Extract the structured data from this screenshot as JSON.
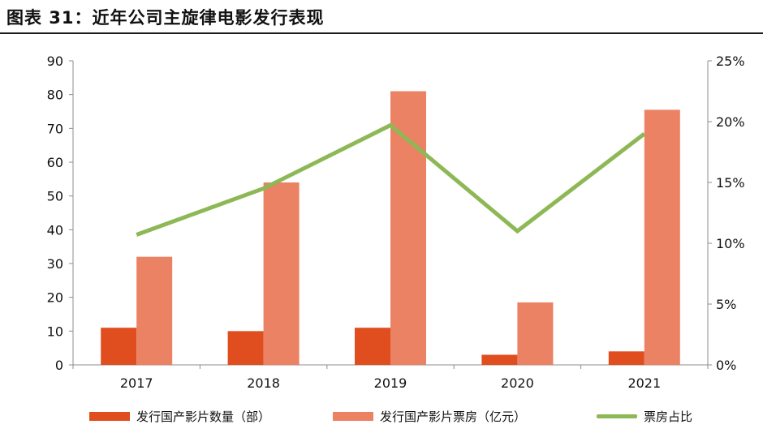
{
  "title": "图表 31：近年公司主旋律电影发行表现",
  "chart_data": {
    "type": "bar",
    "categories": [
      "2017",
      "2018",
      "2019",
      "2020",
      "2021"
    ],
    "series": [
      {
        "name": "发行国产影片数量（部）",
        "type": "bar",
        "axis": "left",
        "color": "#e04e1f",
        "values": [
          11,
          10,
          11,
          3,
          4
        ]
      },
      {
        "name": "发行国产影片票房（亿元）",
        "type": "bar",
        "axis": "left",
        "color": "#ea8263",
        "values": [
          32,
          54,
          81,
          18.5,
          75.5
        ]
      },
      {
        "name": "票房占比",
        "type": "line",
        "axis": "right",
        "color": "#8db855",
        "values": [
          0.107,
          0.145,
          0.197,
          0.11,
          0.19
        ]
      }
    ],
    "ylim": [
      0,
      90
    ],
    "yticks": [
      "0",
      "10",
      "20",
      "30",
      "40",
      "50",
      "60",
      "70",
      "80",
      "90"
    ],
    "y2lim": [
      0,
      0.25
    ],
    "y2ticks": [
      "0%",
      "5%",
      "10%",
      "15%",
      "20%",
      "25%"
    ],
    "grid": false,
    "legend_position": "bottom"
  }
}
